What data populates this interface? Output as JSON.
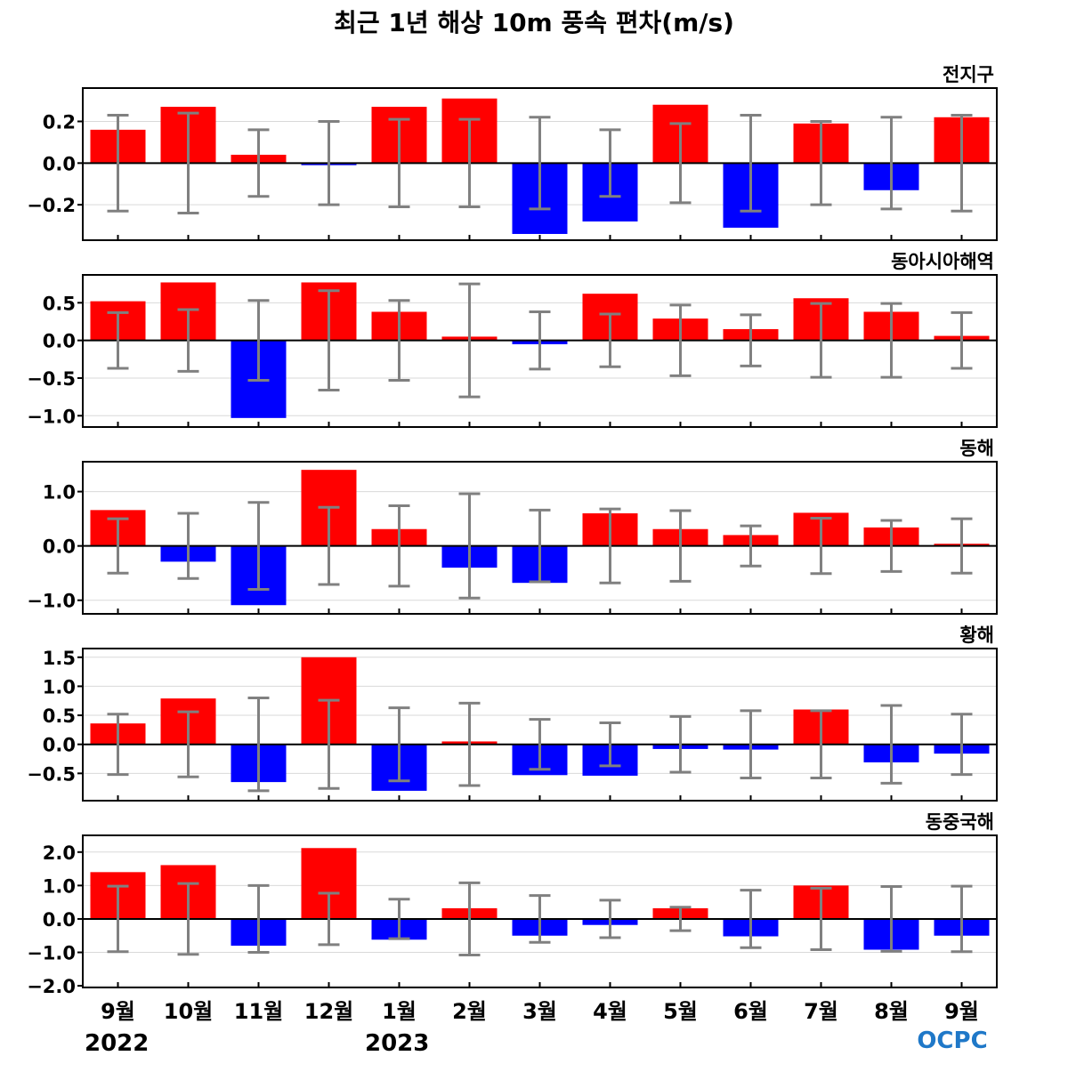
{
  "title": "최근 1년 해상 10m 풍속 편차(m/s)",
  "logo": {
    "text": "OCPC",
    "color_main": "#1f78c8",
    "color_accent": "#5fb0e8"
  },
  "years": [
    "2022",
    "2023"
  ],
  "colors": {
    "positive": "#ff0000",
    "negative": "#0000ff",
    "error_bar": "#808080",
    "zero_line": "#000000",
    "grid": "#d9d9d9"
  },
  "chart_data": [
    {
      "type": "bar",
      "panel_label": "전지구",
      "categories": [
        "9월",
        "10월",
        "11월",
        "12월",
        "1월",
        "2월",
        "3월",
        "4월",
        "5월",
        "6월",
        "7월",
        "8월",
        "9월"
      ],
      "values": [
        0.16,
        0.27,
        0.04,
        -0.01,
        0.27,
        0.31,
        -0.34,
        -0.28,
        0.28,
        -0.31,
        0.19,
        -0.13,
        0.22
      ],
      "error": [
        0.23,
        0.24,
        0.16,
        0.2,
        0.21,
        0.21,
        0.22,
        0.16,
        0.19,
        0.23,
        0.2,
        0.22,
        0.23
      ],
      "ylim": [
        -0.37,
        0.36
      ],
      "yticks": [
        -0.2,
        0.0,
        0.2
      ],
      "ytick_labels": [
        "−0.2",
        "0.0",
        "0.2"
      ],
      "grid": true
    },
    {
      "type": "bar",
      "panel_label": "동아시아해역",
      "categories": [
        "9월",
        "10월",
        "11월",
        "12월",
        "1월",
        "2월",
        "3월",
        "4월",
        "5월",
        "6월",
        "7월",
        "8월",
        "9월"
      ],
      "values": [
        0.52,
        0.77,
        -1.03,
        0.77,
        0.38,
        0.05,
        -0.05,
        0.62,
        0.29,
        0.15,
        0.56,
        0.38,
        0.06
      ],
      "error": [
        0.37,
        0.41,
        0.53,
        0.66,
        0.53,
        0.75,
        0.38,
        0.35,
        0.47,
        0.34,
        0.49,
        0.49,
        0.37
      ],
      "ylim": [
        -1.15,
        0.87
      ],
      "yticks": [
        -1.0,
        -0.5,
        0.0,
        0.5
      ],
      "ytick_labels": [
        "−1.0",
        "−0.5",
        "0.0",
        "0.5"
      ],
      "grid": true
    },
    {
      "type": "bar",
      "panel_label": "동해",
      "categories": [
        "9월",
        "10월",
        "11월",
        "12월",
        "1월",
        "2월",
        "3월",
        "4월",
        "5월",
        "6월",
        "7월",
        "8월",
        "9월"
      ],
      "values": [
        0.66,
        -0.29,
        -1.09,
        1.4,
        0.31,
        -0.4,
        -0.68,
        0.6,
        0.31,
        0.2,
        0.61,
        0.34,
        0.04
      ],
      "error": [
        0.5,
        0.6,
        0.8,
        0.71,
        0.74,
        0.96,
        0.66,
        0.68,
        0.65,
        0.37,
        0.51,
        0.47,
        0.5
      ],
      "ylim": [
        -1.25,
        1.55
      ],
      "yticks": [
        -1.0,
        0.0,
        1.0
      ],
      "ytick_labels": [
        "−1.0",
        "0.0",
        "1.0"
      ],
      "grid": true
    },
    {
      "type": "bar",
      "panel_label": "황해",
      "categories": [
        "9월",
        "10월",
        "11월",
        "12월",
        "1월",
        "2월",
        "3월",
        "4월",
        "5월",
        "6월",
        "7월",
        "8월",
        "9월"
      ],
      "values": [
        0.36,
        0.79,
        -0.65,
        1.5,
        -0.8,
        0.05,
        -0.53,
        -0.54,
        -0.08,
        -0.09,
        0.6,
        -0.31,
        -0.16
      ],
      "error": [
        0.52,
        0.56,
        0.8,
        0.76,
        0.63,
        0.71,
        0.43,
        0.37,
        0.48,
        0.58,
        0.58,
        0.67,
        0.52
      ],
      "ylim": [
        -0.97,
        1.65
      ],
      "yticks": [
        -0.5,
        0.0,
        0.5,
        1.0,
        1.5
      ],
      "ytick_labels": [
        "−0.5",
        "0.0",
        "0.5",
        "1.0",
        "1.5"
      ],
      "grid": true
    },
    {
      "type": "bar",
      "panel_label": "동중국해",
      "categories": [
        "9월",
        "10월",
        "11월",
        "12월",
        "1월",
        "2월",
        "3월",
        "4월",
        "5월",
        "6월",
        "7월",
        "8월",
        "9월"
      ],
      "values": [
        1.4,
        1.61,
        -0.8,
        2.12,
        -0.62,
        0.32,
        -0.5,
        -0.18,
        0.32,
        -0.52,
        1.0,
        -0.92,
        -0.5
      ],
      "error": [
        0.98,
        1.06,
        1.0,
        0.77,
        0.59,
        1.08,
        0.7,
        0.56,
        0.35,
        0.86,
        0.92,
        0.97,
        0.98
      ],
      "ylim": [
        -2.05,
        2.5
      ],
      "yticks": [
        -2.0,
        -1.0,
        0.0,
        1.0,
        2.0
      ],
      "ytick_labels": [
        "−2.0",
        "−1.0",
        "0.0",
        "1.0",
        "2.0"
      ],
      "grid": true
    }
  ]
}
